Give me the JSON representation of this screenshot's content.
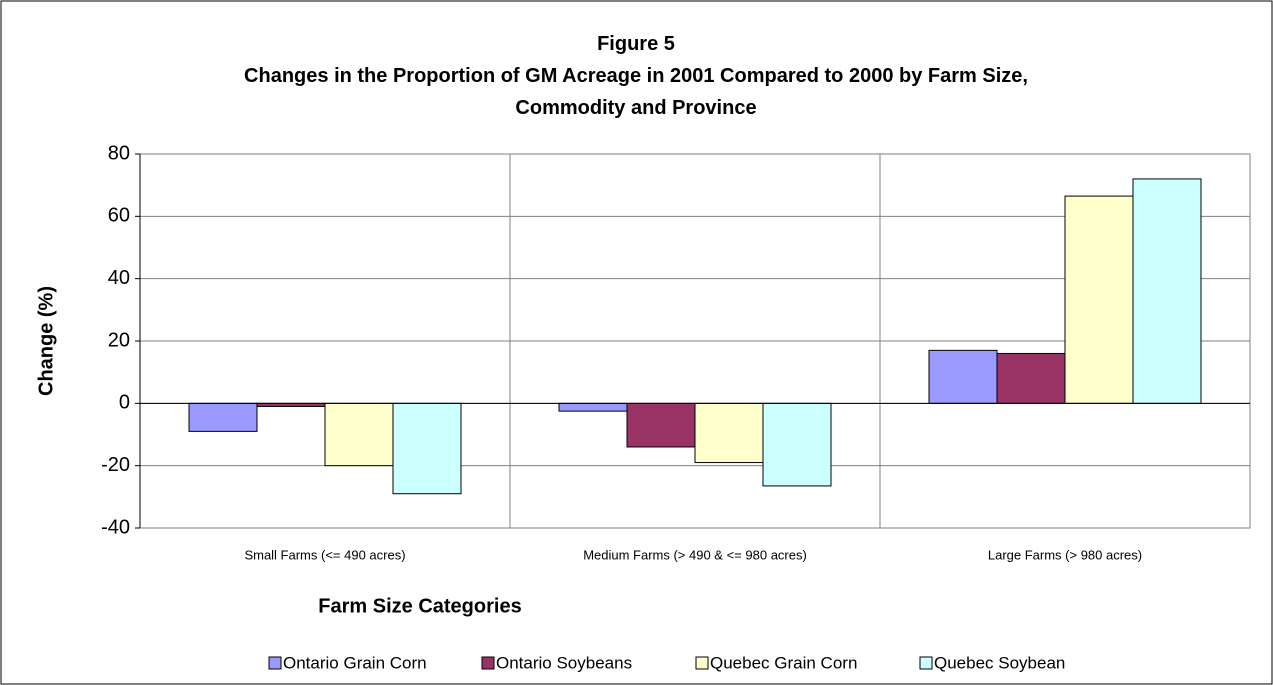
{
  "chart_data": {
    "type": "bar",
    "title": "Figure 5",
    "subtitle": "Changes in the Proportion of GM Acreage in 2001 Compared to 2000 by Farm Size, Commodity and Province",
    "x_label": "Farm Size Categories",
    "y_label": "Change (%)",
    "categories": [
      "Small Farms (<= 490 acres)",
      "Medium Farms (> 490 & <= 980 acres)",
      "Large Farms (> 980 acres)"
    ],
    "series": [
      {
        "name": "Ontario Grain Corn",
        "color": "#9999ff",
        "values": [
          -9,
          -2.5,
          17
        ]
      },
      {
        "name": "Ontario Soybeans",
        "color": "#993366",
        "values": [
          -1,
          -14,
          16
        ]
      },
      {
        "name": "Quebec Grain Corn",
        "color": "#ffffcc",
        "values": [
          -20,
          -19,
          66.5
        ]
      },
      {
        "name": "Quebec Soybean",
        "color": "#ccffff",
        "values": [
          -29,
          -26.5,
          72
        ]
      }
    ],
    "ylim": [
      -40,
      80
    ],
    "yticks": [
      -40,
      -20,
      0,
      20,
      40,
      60,
      80
    ],
    "grid": true,
    "legend": "bottom"
  }
}
